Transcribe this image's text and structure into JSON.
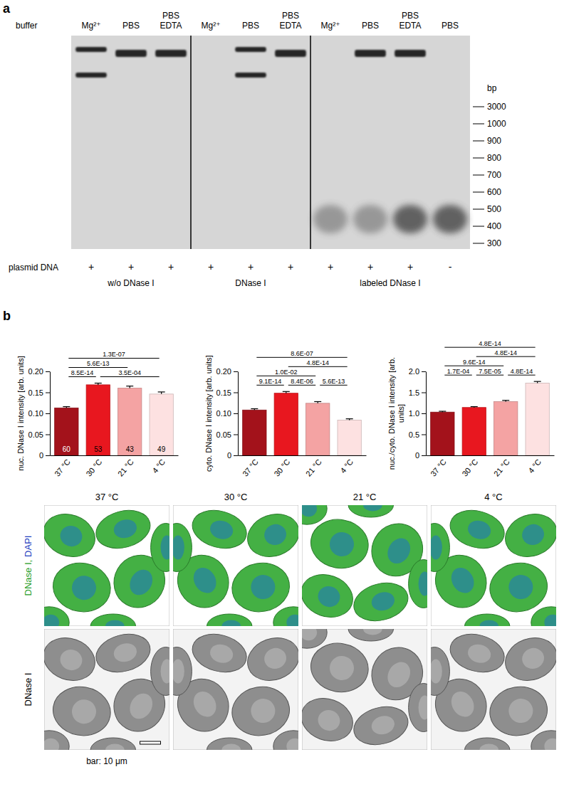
{
  "figure": {
    "panel_labels": [
      "a",
      "b"
    ]
  },
  "gel": {
    "buffer_label": "buffer",
    "plasmid_label": "plasmid DNA",
    "groups": [
      {
        "label": "w/o DNase I",
        "lanes": [
          {
            "buffer": "Mg²⁺",
            "plasmid": "+"
          },
          {
            "buffer": "PBS",
            "plasmid": "+"
          },
          {
            "buffer": "PBS EDTA",
            "plasmid": "+"
          }
        ]
      },
      {
        "label": "DNase I",
        "lanes": [
          {
            "buffer": "Mg²⁺",
            "plasmid": "+"
          },
          {
            "buffer": "PBS",
            "plasmid": "+"
          },
          {
            "buffer": "PBS EDTA",
            "plasmid": "+"
          }
        ]
      },
      {
        "label": "labeled DNase I",
        "lanes": [
          {
            "buffer": "Mg²⁺",
            "plasmid": "+"
          },
          {
            "buffer": "PBS",
            "plasmid": "+"
          },
          {
            "buffer": "PBS EDTA",
            "plasmid": "+"
          },
          {
            "buffer": "PBS",
            "plasmid": "-"
          }
        ]
      }
    ],
    "ladder_unit": "bp",
    "ladder": [
      3000,
      1000,
      900,
      800,
      700,
      600,
      500,
      400,
      300
    ]
  },
  "chart_data": [
    {
      "type": "bar",
      "ylabel": "nuc. DNase I intensity [arb. units]",
      "categories": [
        "37 °C",
        "30 °C",
        "21 °C",
        "4 °C"
      ],
      "values": [
        0.113,
        0.168,
        0.16,
        0.146
      ],
      "errors": [
        0.003,
        0.004,
        0.005,
        0.005
      ],
      "n": [
        60,
        53,
        43,
        49
      ],
      "colors": [
        "#a3121b",
        "#e8171f",
        "#f4a3a3",
        "#fde1e1"
      ],
      "ylim": [
        0,
        0.2
      ],
      "yticks": [
        0,
        0.05,
        {
          "value": 0.1,
          "label": "0.10"
        },
        0.15,
        {
          "value": 0.2,
          "label": "0.20"
        }
      ],
      "comparisons": [
        {
          "from": "37 °C",
          "to": "30 °C",
          "label": "8.5E-14"
        },
        {
          "from": "37 °C",
          "to": "21 °C",
          "label": "5.6E-13"
        },
        {
          "from": "37 °C",
          "to": "4 °C",
          "label": "1.3E-07"
        },
        {
          "from": "30 °C",
          "to": "4 °C",
          "label": "3.5E-04"
        }
      ]
    },
    {
      "type": "bar",
      "ylabel": "cyto. DNase I intensity [arb. units]",
      "categories": [
        "37 °C",
        "30 °C",
        "21 °C",
        "4 °C"
      ],
      "values": [
        0.108,
        0.148,
        0.124,
        0.084
      ],
      "errors": [
        0.003,
        0.004,
        0.004,
        0.003
      ],
      "colors": [
        "#a3121b",
        "#e8171f",
        "#f4a3a3",
        "#fde1e1"
      ],
      "ylim": [
        0,
        0.2
      ],
      "yticks": [
        0,
        0.05,
        {
          "value": 0.1,
          "label": "0.10"
        },
        0.15,
        {
          "value": 0.2,
          "label": "0.20"
        }
      ],
      "comparisons": [
        {
          "from": "37 °C",
          "to": "30 °C",
          "label": "9.1E-14"
        },
        {
          "from": "37 °C",
          "to": "21 °C",
          "label": "1.0E-02"
        },
        {
          "from": "37 °C",
          "to": "4 °C",
          "label": "8.6E-07"
        },
        {
          "from": "30 °C",
          "to": "21 °C",
          "label": "8.4E-06"
        },
        {
          "from": "30 °C",
          "to": "4 °C",
          "label": "4.8E-14"
        },
        {
          "from": "21 °C",
          "to": "4 °C",
          "label": "5.6E-13"
        }
      ]
    },
    {
      "type": "bar",
      "ylabel": "nuc./cyto. DNase I intensity [arb. units]",
      "categories": [
        "37 °C",
        "30 °C",
        "21 °C",
        "4 °C"
      ],
      "values": [
        1.03,
        1.14,
        1.28,
        1.72
      ],
      "errors": [
        0.02,
        0.02,
        0.03,
        0.04
      ],
      "colors": [
        "#a3121b",
        "#e8171f",
        "#f4a3a3",
        "#fde1e1"
      ],
      "ylim": [
        0,
        2
      ],
      "yticks": [
        0,
        0.5,
        {
          "value": 1,
          "label": "1.0"
        },
        1.5,
        {
          "value": 2,
          "label": "2.0"
        }
      ],
      "comparisons": [
        {
          "from": "37 °C",
          "to": "30 °C",
          "label": "1.7E-04"
        },
        {
          "from": "37 °C",
          "to": "21 °C",
          "label": "9.6E-14"
        },
        {
          "from": "37 °C",
          "to": "4 °C",
          "label": "4.8E-14"
        },
        {
          "from": "30 °C",
          "to": "21 °C",
          "label": "7.5E-05"
        },
        {
          "from": "30 °C",
          "to": "4 °C",
          "label": "4.8E-14"
        },
        {
          "from": "21 °C",
          "to": "4 °C",
          "label": "4.8E-14"
        }
      ]
    }
  ],
  "images": {
    "columns": [
      "37 °C",
      "30 °C",
      "21 °C",
      "4 °C"
    ],
    "rows": [
      {
        "parts": [
          {
            "text": "DNase I,",
            "color": "#2ca02c"
          },
          {
            "text": "DAPI",
            "color": "#1f3fbf"
          }
        ]
      },
      {
        "parts": [
          {
            "text": "DNase I",
            "color": "#000000"
          }
        ]
      }
    ],
    "scale_bar": "bar: 10 μm"
  }
}
